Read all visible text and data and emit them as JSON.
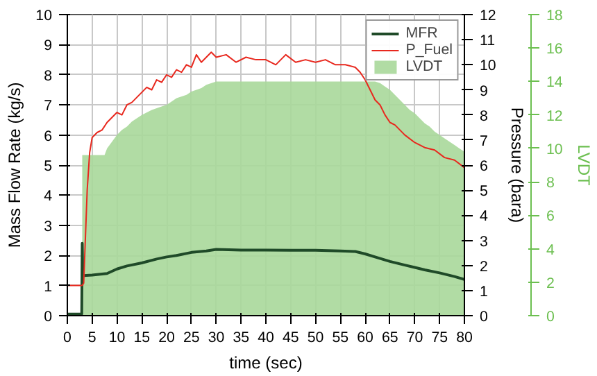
{
  "chart_data": {
    "type": "line",
    "xlabel": "time (sec)",
    "ylabel": "Mass Flow Rate (kg/s)",
    "y2label": "Pressure (bara)",
    "y3label": "LVDT",
    "xlim": [
      0,
      80
    ],
    "xticks": [
      0,
      5,
      10,
      15,
      20,
      25,
      30,
      35,
      40,
      45,
      50,
      55,
      60,
      65,
      70,
      75,
      80
    ],
    "ylim": [
      0,
      10
    ],
    "yticks": [
      0,
      1,
      2,
      3,
      4,
      5,
      6,
      7,
      8,
      9,
      10
    ],
    "y2lim": [
      0,
      12
    ],
    "y2ticks": [
      0,
      1,
      2,
      3,
      4,
      5,
      6,
      7,
      8,
      9,
      10,
      11,
      12
    ],
    "y3lim": [
      0,
      18
    ],
    "y3ticks": [
      0,
      2,
      4,
      6,
      8,
      10,
      12,
      14,
      16,
      18
    ],
    "grid": true,
    "legend": "top right",
    "line_style": "solid",
    "series": [
      {
        "name": "MFR",
        "color": "#1f4a28",
        "x": [
          0,
          2.9,
          3,
          3.1,
          3.3,
          5,
          8,
          10,
          12,
          15,
          18,
          20,
          22,
          25,
          28,
          30,
          35,
          40,
          45,
          50,
          55,
          58,
          60,
          62,
          65,
          68,
          70,
          72,
          75,
          78,
          80
        ],
        "values": [
          0.05,
          0.05,
          2.4,
          1.35,
          1.33,
          1.35,
          1.4,
          1.55,
          1.65,
          1.75,
          1.88,
          1.95,
          2.0,
          2.1,
          2.15,
          2.2,
          2.18,
          2.18,
          2.17,
          2.17,
          2.15,
          2.13,
          2.05,
          1.95,
          1.8,
          1.68,
          1.6,
          1.52,
          1.42,
          1.3,
          1.2
        ]
      },
      {
        "name": "P_Fuel",
        "axis": "y2",
        "color": "#e8281e",
        "x": [
          0,
          3,
          3.3,
          4,
          4.5,
          5,
          6,
          7,
          8,
          9,
          10,
          11,
          12,
          13,
          14,
          15,
          16,
          17,
          18,
          19,
          20,
          21,
          22,
          23,
          24,
          25,
          26,
          27,
          28,
          29,
          30,
          32,
          34,
          36,
          38,
          40,
          42,
          44,
          46,
          48,
          50,
          52,
          54,
          56,
          58,
          59,
          60,
          61,
          62,
          63,
          64,
          65,
          66,
          67,
          68,
          70,
          72,
          74,
          76,
          78,
          80
        ],
        "values": [
          1.2,
          1.2,
          1.3,
          5.0,
          6.5,
          7.1,
          7.3,
          7.4,
          7.7,
          7.9,
          8.1,
          8.0,
          8.4,
          8.5,
          8.7,
          8.9,
          9.1,
          9.0,
          9.4,
          9.3,
          9.6,
          9.5,
          9.8,
          9.7,
          10.0,
          9.9,
          10.4,
          10.1,
          10.3,
          10.5,
          10.3,
          10.4,
          10.1,
          10.3,
          10.2,
          10.2,
          10.0,
          10.4,
          10.1,
          10.2,
          10.1,
          10.2,
          10.0,
          10.0,
          9.9,
          9.7,
          9.4,
          9.0,
          8.6,
          8.4,
          8.0,
          7.7,
          7.6,
          7.4,
          7.2,
          6.9,
          6.7,
          6.6,
          6.3,
          6.2,
          5.9
        ]
      },
      {
        "name": "LVDT",
        "type": "area",
        "axis": "y3",
        "color": "#a8d89a",
        "x": [
          3,
          7.5,
          8,
          9,
          10,
          11,
          12,
          13,
          14,
          15,
          17,
          19,
          20,
          22,
          24,
          25,
          27,
          28,
          30,
          35,
          40,
          45,
          50,
          55,
          60,
          62,
          63,
          64,
          65,
          66,
          67,
          68,
          69,
          70,
          71,
          72,
          73,
          74,
          75,
          76,
          77,
          78,
          79,
          80
        ],
        "values": [
          9.6,
          9.6,
          10.0,
          10.4,
          10.8,
          11.1,
          11.3,
          11.6,
          11.8,
          12.0,
          12.3,
          12.5,
          12.6,
          13.0,
          13.2,
          13.4,
          13.6,
          13.8,
          14.0,
          14.0,
          14.0,
          14.0,
          14.0,
          14.0,
          14.0,
          14.0,
          13.9,
          13.7,
          13.5,
          13.2,
          12.9,
          12.6,
          12.3,
          12.1,
          11.8,
          11.5,
          11.3,
          11.0,
          10.8,
          10.6,
          10.4,
          10.2,
          10.0,
          9.8
        ]
      }
    ]
  }
}
